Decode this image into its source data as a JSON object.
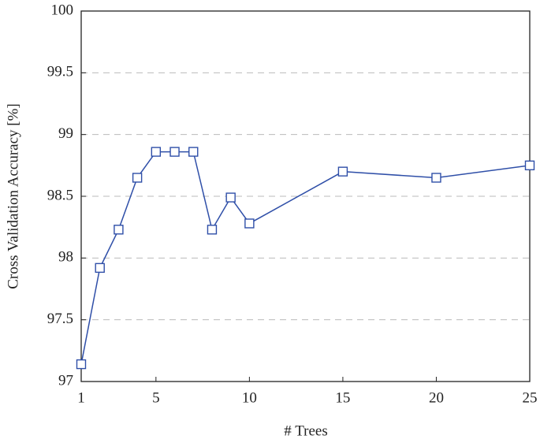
{
  "chart_data": {
    "type": "line",
    "x_label": "# Trees",
    "y_label": "Cross Validation Accuracy [%]",
    "x": [
      1,
      2,
      3,
      4,
      5,
      6,
      7,
      8,
      9,
      10,
      15,
      20,
      25
    ],
    "series": [
      {
        "color": "#2f4fa8",
        "values": [
          97.14,
          97.92,
          98.23,
          98.65,
          98.86,
          98.86,
          98.86,
          98.23,
          98.49,
          98.28,
          98.7,
          98.65,
          98.75
        ]
      }
    ],
    "xlim": [
      1,
      25
    ],
    "xticks": [
      1,
      5,
      10,
      15,
      20,
      25
    ],
    "ylim": [
      97,
      100
    ],
    "yticks": [
      97,
      97.5,
      98,
      98.5,
      99,
      99.5,
      100
    ],
    "grid": true
  }
}
